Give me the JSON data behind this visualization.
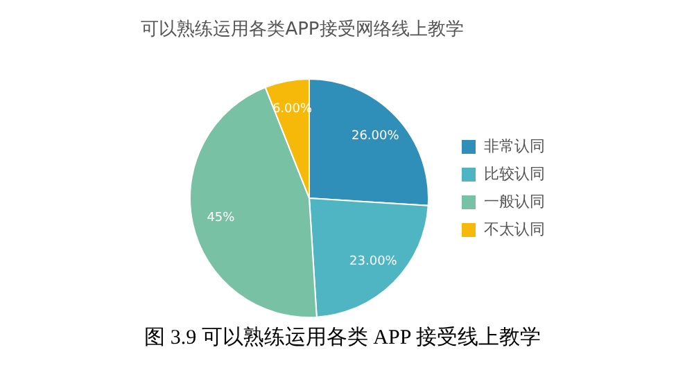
{
  "chart_data": {
    "type": "pie",
    "title": "可以熟练运用各类APP接受网络线上教学",
    "categories": [
      "非常认同",
      "比较认同",
      "一般认同",
      "不太认同"
    ],
    "values": [
      26,
      23,
      45,
      6
    ],
    "colors": [
      "#2f8fb9",
      "#4fb5c3",
      "#79c1a4",
      "#f6b90a"
    ],
    "value_labels": [
      "26.00%",
      "23.00%",
      "45%",
      "6.00%"
    ],
    "legend": "right",
    "annotations": [
      "图 3.9  可以熟练运用各类 APP 接受线上教学"
    ]
  }
}
